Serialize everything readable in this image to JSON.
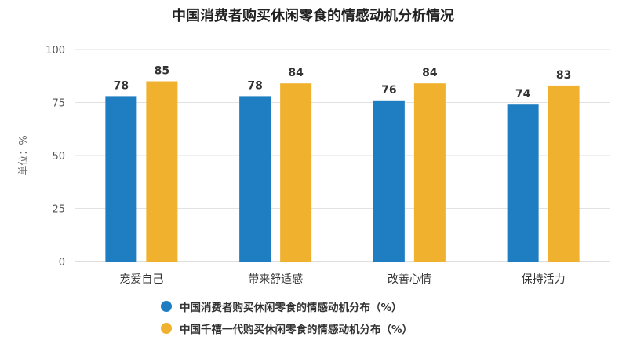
{
  "chart_data": {
    "type": "bar",
    "title": "中国消费者购买休闲零食的情感动机分析情况",
    "ylabel": "单位：%",
    "xlabel": "",
    "ylim": [
      0,
      100
    ],
    "yticks": [
      0,
      25,
      50,
      75,
      100
    ],
    "categories": [
      "宠爱自己",
      "带来舒适感",
      "改善心情",
      "保持活力"
    ],
    "series": [
      {
        "name": "中国消费者购买休闲零食的情感动机分布（%）",
        "values": [
          78,
          78,
          76,
          74
        ],
        "color": "#1f7ec2"
      },
      {
        "name": "中国千禧一代购买休闲零食的情感动机分布（%）",
        "values": [
          85,
          84,
          84,
          83
        ],
        "color": "#f0b12e"
      }
    ],
    "grid": true,
    "legend_position": "bottom"
  }
}
